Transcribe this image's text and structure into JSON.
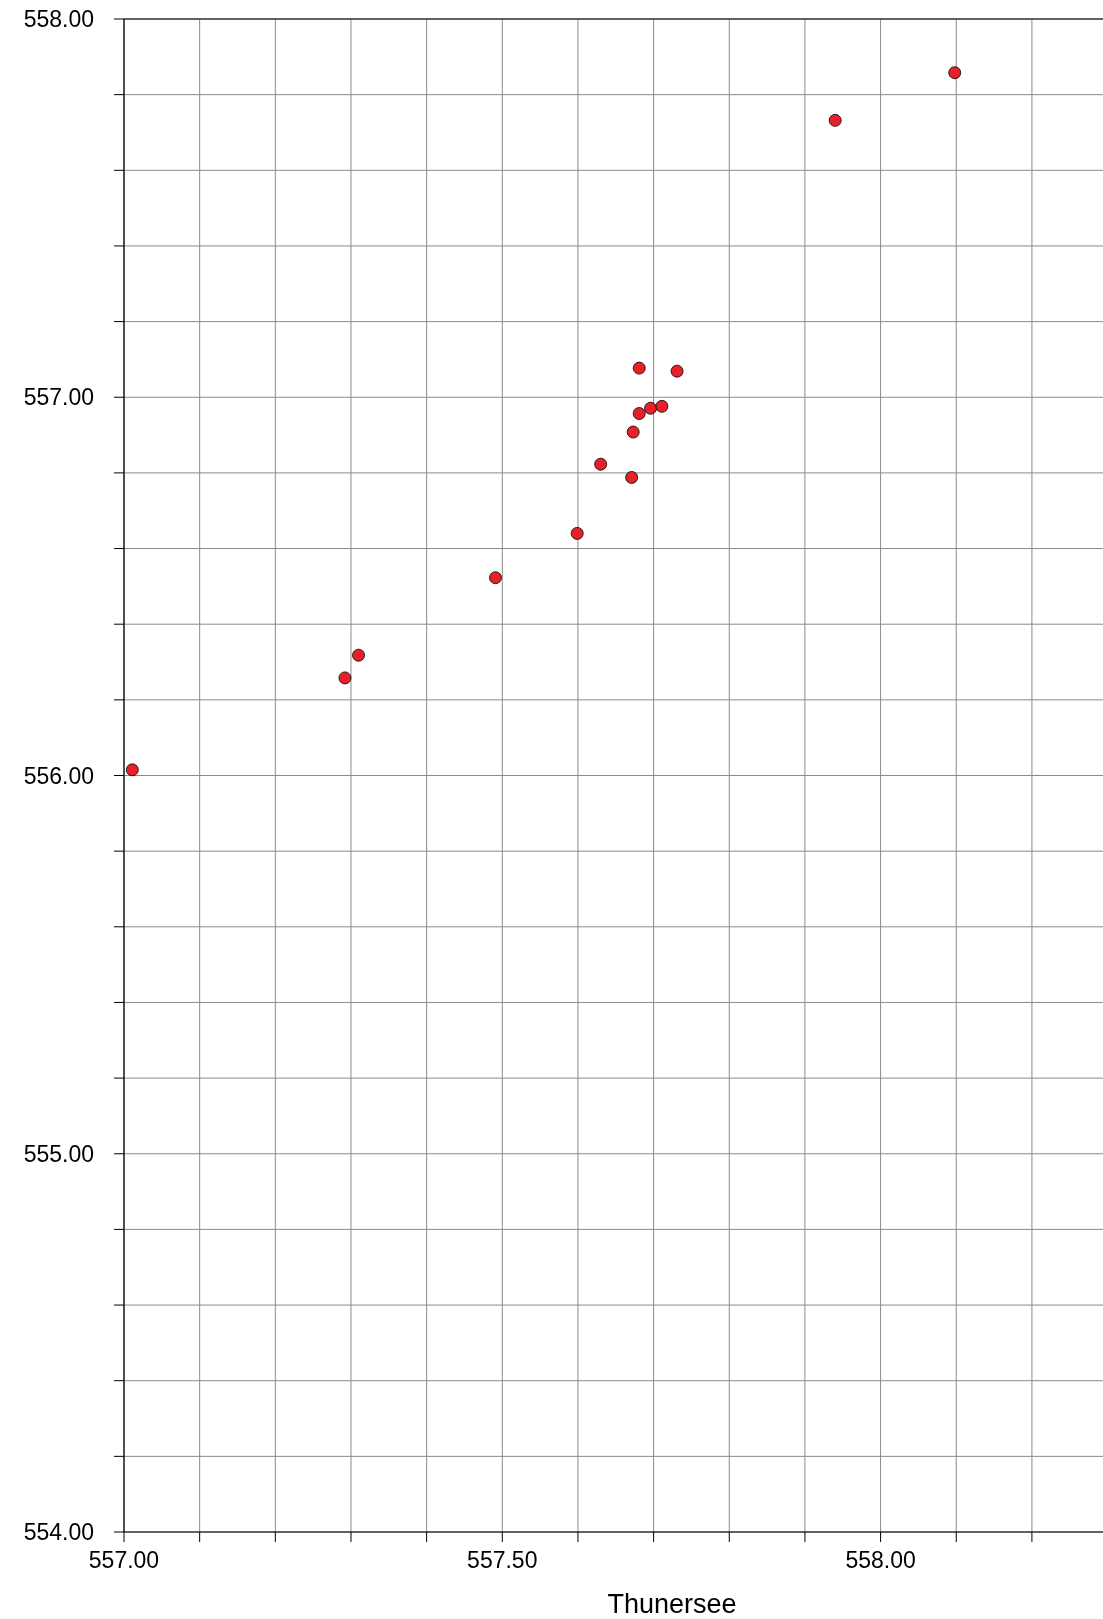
{
  "chart_data": {
    "type": "scatter",
    "xlabel": "Thunersee",
    "xlim": [
      557,
      558.29
    ],
    "ylim": [
      554,
      558
    ],
    "xticks": [
      {
        "value": 557,
        "label": "557.00"
      },
      {
        "value": 557.1,
        "label": null
      },
      {
        "value": 557.2,
        "label": null
      },
      {
        "value": 557.3,
        "label": null
      },
      {
        "value": 557.4,
        "label": null
      },
      {
        "value": 557.5,
        "label": "557.50"
      },
      {
        "value": 557.6,
        "label": null
      },
      {
        "value": 557.7,
        "label": null
      },
      {
        "value": 557.8,
        "label": null
      },
      {
        "value": 557.9,
        "label": null
      },
      {
        "value": 558,
        "label": "558.00"
      },
      {
        "value": 558.1,
        "label": null
      },
      {
        "value": 558.2,
        "label": null
      }
    ],
    "yticks": [
      {
        "value": 554,
        "label": "554.00"
      },
      {
        "value": 554.2,
        "label": null
      },
      {
        "value": 554.4,
        "label": null
      },
      {
        "value": 554.6,
        "label": null
      },
      {
        "value": 554.8,
        "label": null
      },
      {
        "value": 555,
        "label": "555.00"
      },
      {
        "value": 555.2,
        "label": null
      },
      {
        "value": 555.4,
        "label": null
      },
      {
        "value": 555.6,
        "label": null
      },
      {
        "value": 555.8,
        "label": null
      },
      {
        "value": 556,
        "label": "556.00"
      },
      {
        "value": 556.2,
        "label": null
      },
      {
        "value": 556.4,
        "label": null
      },
      {
        "value": 556.6,
        "label": null
      },
      {
        "value": 556.8,
        "label": null
      },
      {
        "value": 557,
        "label": "557.00"
      },
      {
        "value": 557.2,
        "label": null
      },
      {
        "value": 557.4,
        "label": null
      },
      {
        "value": 557.6,
        "label": null
      },
      {
        "value": 557.8,
        "label": null
      },
      {
        "value": 558,
        "label": "558.00"
      }
    ],
    "grid": true,
    "marker": "circle",
    "series": [
      {
        "color": "#e8202a",
        "x": [
          557.011,
          557.292,
          557.31,
          557.491,
          557.599,
          557.63,
          557.671,
          557.673,
          557.681,
          557.696,
          557.711,
          557.681,
          557.731,
          557.94,
          558.098
        ],
        "values": [
          556.015,
          556.258,
          556.318,
          556.523,
          556.64,
          556.823,
          556.788,
          556.908,
          556.957,
          556.971,
          556.976,
          557.077,
          557.069,
          557.732,
          557.858
        ]
      }
    ]
  }
}
